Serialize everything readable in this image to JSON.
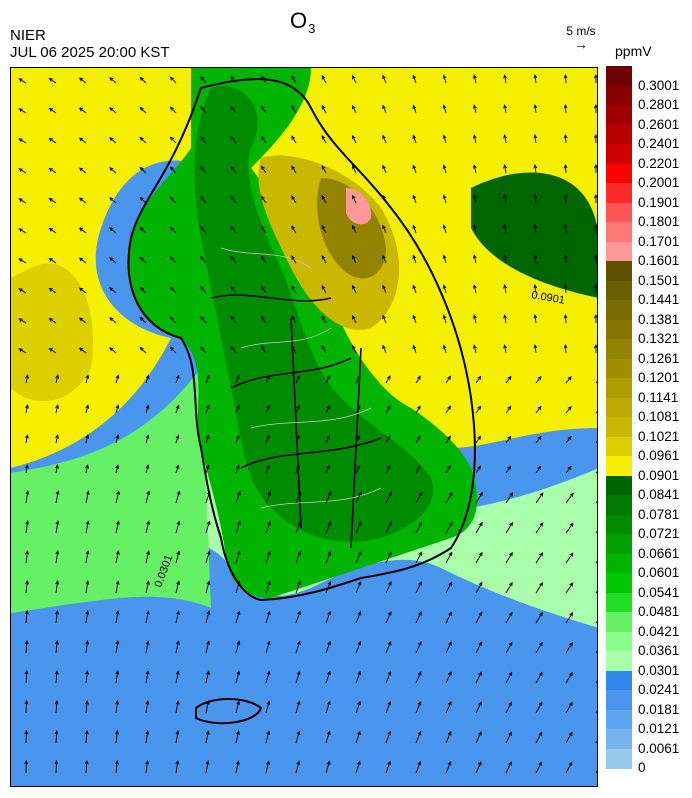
{
  "header": {
    "agency": "NIER",
    "timestamp": "JUL 06 2025 20:00 KST",
    "title_main": "O",
    "title_sub": "3"
  },
  "wind_reference": {
    "label": "5 m/s",
    "arrow": "→"
  },
  "colorbar": {
    "unit": "ppmV",
    "levels": [
      {
        "label": "0.3001",
        "color": "#6e0000"
      },
      {
        "label": "0.2801",
        "color": "#8a0000"
      },
      {
        "label": "0.2601",
        "color": "#a00000"
      },
      {
        "label": "0.2401",
        "color": "#b80000"
      },
      {
        "label": "0.2201",
        "color": "#d00000"
      },
      {
        "label": "0.2001",
        "color": "#ff0000"
      },
      {
        "label": "0.1901",
        "color": "#ff2a2a"
      },
      {
        "label": "0.1801",
        "color": "#ff5555"
      },
      {
        "label": "0.1701",
        "color": "#ff7777"
      },
      {
        "label": "0.1601",
        "color": "#ff9999"
      },
      {
        "label": "0.1501",
        "color": "#5e5200"
      },
      {
        "label": "0.1441",
        "color": "#6b5e00"
      },
      {
        "label": "0.1381",
        "color": "#786b00"
      },
      {
        "label": "0.1321",
        "color": "#857700"
      },
      {
        "label": "0.1261",
        "color": "#928400"
      },
      {
        "label": "0.1201",
        "color": "#a09000"
      },
      {
        "label": "0.1141",
        "color": "#ad9d00"
      },
      {
        "label": "0.1081",
        "color": "#bbaa00"
      },
      {
        "label": "0.1021",
        "color": "#c9b800"
      },
      {
        "label": "0.0961",
        "color": "#dcd000"
      },
      {
        "label": "0.0901",
        "color": "#f5f000"
      },
      {
        "label": "0.0841",
        "color": "#006600"
      },
      {
        "label": "0.0781",
        "color": "#007a00"
      },
      {
        "label": "0.0721",
        "color": "#008c00"
      },
      {
        "label": "0.0661",
        "color": "#00a000"
      },
      {
        "label": "0.0601",
        "color": "#00b400"
      },
      {
        "label": "0.0541",
        "color": "#00c800"
      },
      {
        "label": "0.0481",
        "color": "#22dd22"
      },
      {
        "label": "0.0421",
        "color": "#66f066"
      },
      {
        "label": "0.0361",
        "color": "#88ff88"
      },
      {
        "label": "0.0301",
        "color": "#aaffaa"
      },
      {
        "label": "0.0241",
        "color": "#3388ee"
      },
      {
        "label": "0.0181",
        "color": "#4a96ee"
      },
      {
        "label": "0.0121",
        "color": "#5ea4ee"
      },
      {
        "label": "0.0061",
        "color": "#77b4ee"
      },
      {
        "label": "0",
        "color": "#99c8ee"
      }
    ]
  },
  "map": {
    "contour_labels": [
      "0.0901",
      "0.0301"
    ]
  }
}
